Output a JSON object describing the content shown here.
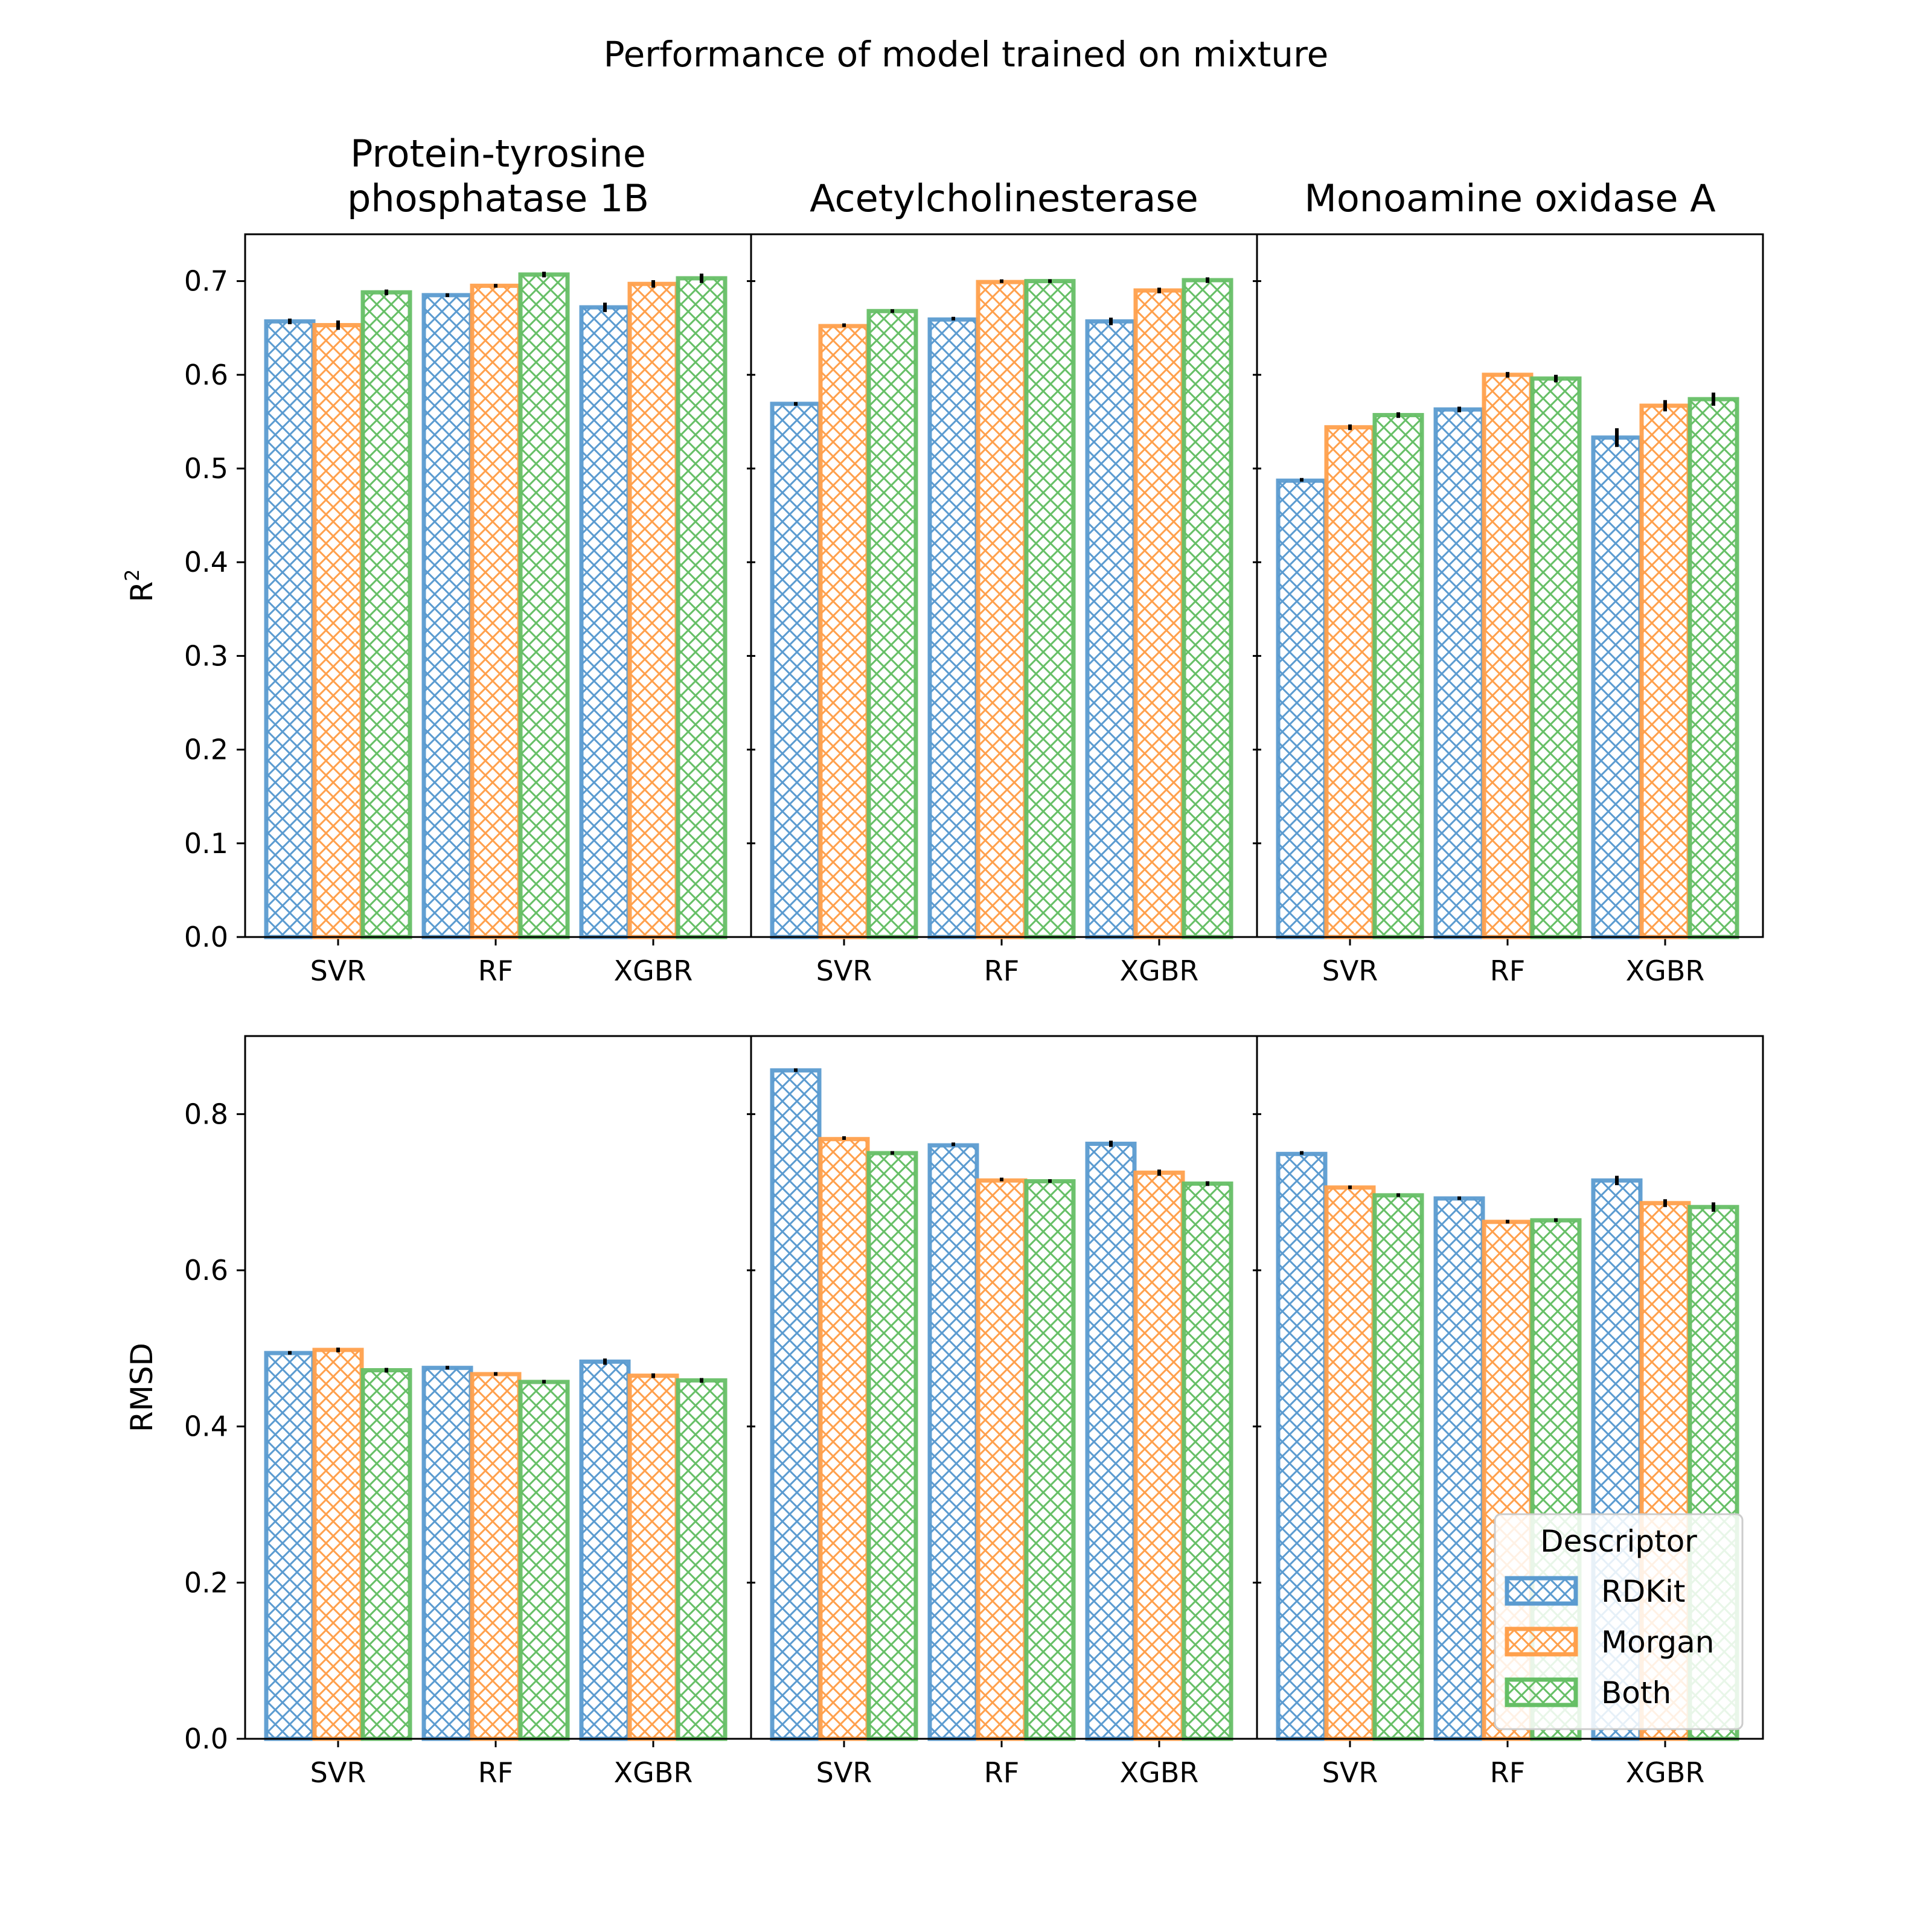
{
  "figure": {
    "title": "Performance of model trained on mixture"
  },
  "colors": {
    "RDKit": "#5b9bd0",
    "Morgan": "#ffa04c",
    "Both": "#66bf66",
    "errorbar": "#000000"
  },
  "legend": {
    "title": "Descriptor",
    "items": [
      "RDKit",
      "Morgan",
      "Both"
    ],
    "placement": "lower-right"
  },
  "rows": [
    {
      "ylabel": "R",
      "ylabel_sup": "2",
      "ylim": [
        0,
        0.75
      ],
      "ticks": [
        "0.0",
        "0.1",
        "0.2",
        "0.3",
        "0.4",
        "0.5",
        "0.6",
        "0.7"
      ],
      "tick_values": [
        0,
        0.1,
        0.2,
        0.3,
        0.4,
        0.5,
        0.6,
        0.7
      ]
    },
    {
      "ylabel": "RMSD",
      "ylabel_sup": "",
      "ylim": [
        0,
        0.9
      ],
      "ticks": [
        "0.0",
        "0.2",
        "0.4",
        "0.6",
        "0.8"
      ],
      "tick_values": [
        0,
        0.2,
        0.4,
        0.6,
        0.8
      ]
    }
  ],
  "columns": [
    {
      "title_lines": [
        "Protein-tyrosine",
        "phosphatase 1B"
      ]
    },
    {
      "title_lines": [
        "Acetylcholinesterase"
      ]
    },
    {
      "title_lines": [
        "Monoamine oxidase A"
      ]
    }
  ],
  "chart_data": [
    {
      "type": "bar",
      "row": 0,
      "col": 0,
      "categories": [
        "SVR",
        "RF",
        "XGBR"
      ],
      "ylabel": "R²",
      "ylim": [
        0,
        0.75
      ],
      "series": [
        {
          "name": "RDKit",
          "values": [
            0.657,
            0.685,
            0.672
          ],
          "errors": [
            0.003,
            0.002,
            0.005
          ]
        },
        {
          "name": "Morgan",
          "values": [
            0.653,
            0.695,
            0.697
          ],
          "errors": [
            0.005,
            0.002,
            0.004
          ]
        },
        {
          "name": "Both",
          "values": [
            0.688,
            0.707,
            0.703
          ],
          "errors": [
            0.003,
            0.003,
            0.005
          ]
        }
      ]
    },
    {
      "type": "bar",
      "row": 0,
      "col": 1,
      "categories": [
        "SVR",
        "RF",
        "XGBR"
      ],
      "ylabel": "R²",
      "ylim": [
        0,
        0.75
      ],
      "series": [
        {
          "name": "RDKit",
          "values": [
            0.569,
            0.659,
            0.657
          ],
          "errors": [
            0.002,
            0.001,
            0.004
          ]
        },
        {
          "name": "Morgan",
          "values": [
            0.652,
            0.699,
            0.69
          ],
          "errors": [
            0.001,
            0.001,
            0.003
          ]
        },
        {
          "name": "Both",
          "values": [
            0.668,
            0.7,
            0.701
          ],
          "errors": [
            0.002,
            0.002,
            0.003
          ]
        }
      ]
    },
    {
      "type": "bar",
      "row": 0,
      "col": 2,
      "categories": [
        "SVR",
        "RF",
        "XGBR"
      ],
      "ylabel": "R²",
      "ylim": [
        0,
        0.75
      ],
      "series": [
        {
          "name": "RDKit",
          "values": [
            0.487,
            0.563,
            0.533
          ],
          "errors": [
            0.001,
            0.003,
            0.01
          ]
        },
        {
          "name": "Morgan",
          "values": [
            0.544,
            0.6,
            0.567
          ],
          "errors": [
            0.003,
            0.003,
            0.006
          ]
        },
        {
          "name": "Both",
          "values": [
            0.557,
            0.596,
            0.574
          ],
          "errors": [
            0.003,
            0.004,
            0.007
          ]
        }
      ]
    },
    {
      "type": "bar",
      "row": 1,
      "col": 0,
      "categories": [
        "SVR",
        "RF",
        "XGBR"
      ],
      "ylabel": "RMSD",
      "ylim": [
        0,
        0.9
      ],
      "series": [
        {
          "name": "RDKit",
          "values": [
            0.494,
            0.475,
            0.483
          ],
          "errors": [
            0.002,
            0.002,
            0.004
          ]
        },
        {
          "name": "Morgan",
          "values": [
            0.498,
            0.467,
            0.465
          ],
          "errors": [
            0.003,
            0.002,
            0.003
          ]
        },
        {
          "name": "Both",
          "values": [
            0.472,
            0.457,
            0.459
          ],
          "errors": [
            0.003,
            0.002,
            0.003
          ]
        }
      ]
    },
    {
      "type": "bar",
      "row": 1,
      "col": 1,
      "categories": [
        "SVR",
        "RF",
        "XGBR"
      ],
      "ylabel": "RMSD",
      "ylim": [
        0,
        0.9
      ],
      "series": [
        {
          "name": "RDKit",
          "values": [
            0.856,
            0.76,
            0.762
          ],
          "errors": [
            0.002,
            0.001,
            0.004
          ]
        },
        {
          "name": "Morgan",
          "values": [
            0.768,
            0.715,
            0.725
          ],
          "errors": [
            0.001,
            0.001,
            0.004
          ]
        },
        {
          "name": "Both",
          "values": [
            0.75,
            0.714,
            0.711
          ],
          "errors": [
            0.002,
            0.002,
            0.003
          ]
        }
      ]
    },
    {
      "type": "bar",
      "row": 1,
      "col": 2,
      "categories": [
        "SVR",
        "RF",
        "XGBR"
      ],
      "ylabel": "RMSD",
      "ylim": [
        0,
        0.9
      ],
      "series": [
        {
          "name": "RDKit",
          "values": [
            0.749,
            0.692,
            0.715
          ],
          "errors": [
            0.001,
            0.002,
            0.006
          ]
        },
        {
          "name": "Morgan",
          "values": [
            0.706,
            0.662,
            0.686
          ],
          "errors": [
            0.002,
            0.002,
            0.005
          ]
        },
        {
          "name": "Both",
          "values": [
            0.696,
            0.664,
            0.681
          ],
          "errors": [
            0.002,
            0.002,
            0.006
          ]
        }
      ]
    }
  ]
}
